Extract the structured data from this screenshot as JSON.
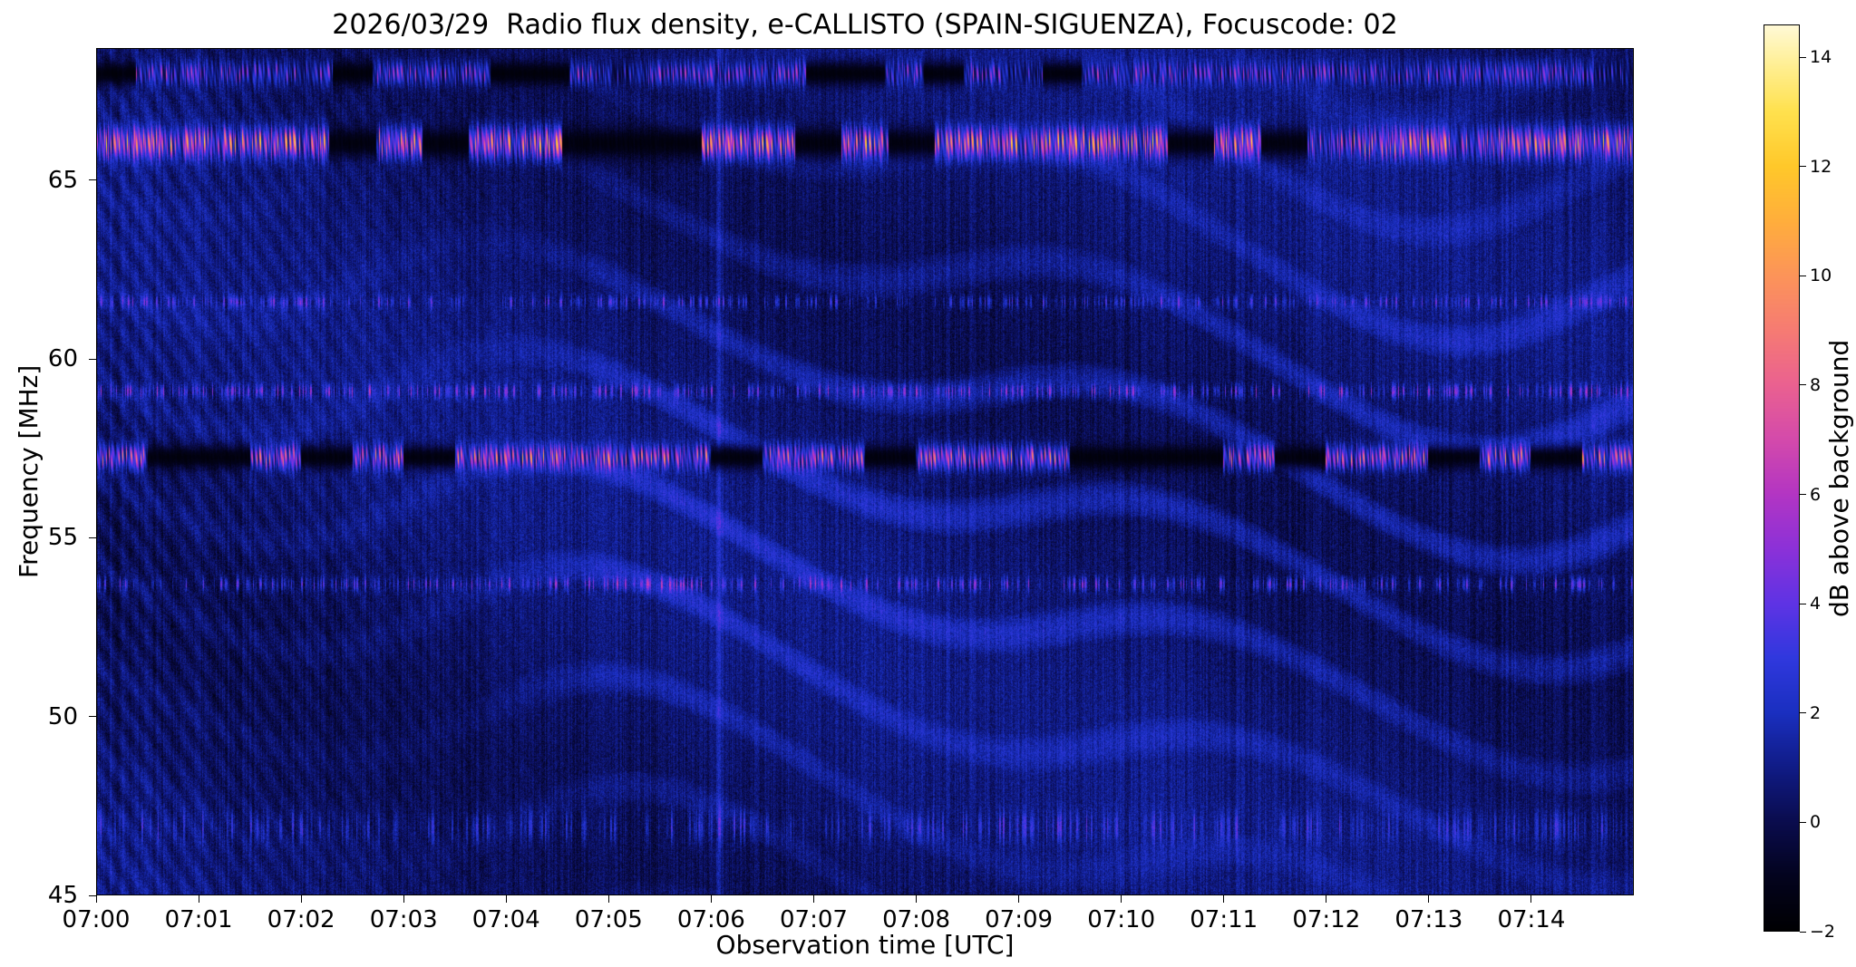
{
  "chart_data": {
    "type": "heatmap",
    "title": "2026/03/29  Radio flux density, e-CALLISTO (SPAIN-SIGUENZA), Focuscode: 02",
    "xlabel": "Observation time [UTC]",
    "ylabel": "Frequency [MHz]",
    "colorbar_label": "dB above background",
    "x_start_utc": "07:00",
    "x_end_utc": "07:15",
    "x_range_minutes": [
      0,
      15
    ],
    "x_ticks": [
      "07:00",
      "07:01",
      "07:02",
      "07:03",
      "07:04",
      "07:05",
      "07:06",
      "07:07",
      "07:08",
      "07:09",
      "07:10",
      "07:11",
      "07:12",
      "07:13",
      "07:14"
    ],
    "y_range": [
      45,
      68.7
    ],
    "y_ticks": [
      45,
      50,
      55,
      60,
      65
    ],
    "value_range": [
      -2,
      14.6
    ],
    "colorbar_ticks": [
      -2,
      0,
      2,
      4,
      6,
      8,
      10,
      12,
      14
    ],
    "grid": false,
    "colormap": [
      {
        "v": -2,
        "c": "#000002"
      },
      {
        "v": -1,
        "c": "#03031e"
      },
      {
        "v": 0,
        "c": "#0a0c4e"
      },
      {
        "v": 1,
        "c": "#101b86"
      },
      {
        "v": 2,
        "c": "#1a2fc0"
      },
      {
        "v": 3,
        "c": "#3038de"
      },
      {
        "v": 4,
        "c": "#5f33e4"
      },
      {
        "v": 5,
        "c": "#8c31d8"
      },
      {
        "v": 6,
        "c": "#b335c3"
      },
      {
        "v": 7,
        "c": "#d44aab"
      },
      {
        "v": 8,
        "c": "#ea6190"
      },
      {
        "v": 9,
        "c": "#f67b73"
      },
      {
        "v": 10,
        "c": "#fc9459"
      },
      {
        "v": 11,
        "c": "#ffae3c"
      },
      {
        "v": 12,
        "c": "#ffc82a"
      },
      {
        "v": 13,
        "c": "#ffe14e"
      },
      {
        "v": 14,
        "c": "#fff1a0"
      },
      {
        "v": 15,
        "c": "#ffffff"
      }
    ],
    "rfi_bands": [
      {
        "freq": 68.0,
        "half_width": 0.33,
        "style": "dashed_rfi",
        "peak_db": 9,
        "gap_fraction": 0.3,
        "seg_rate": 2.6,
        "dash_rate": 25
      },
      {
        "freq": 66.05,
        "half_width": 0.42,
        "style": "dashed_rfi",
        "peak_db": 15,
        "gap_fraction": 0.35,
        "seg_rate": 2.2,
        "dash_rate": 25
      },
      {
        "freq": 61.6,
        "half_width": 0.18,
        "style": "dotted",
        "peak_db": 3.5,
        "gap_fraction": 0,
        "seg_rate": 0,
        "dash_rate": 18
      },
      {
        "freq": 59.1,
        "half_width": 0.2,
        "style": "dotted",
        "peak_db": 5,
        "gap_fraction": 0,
        "seg_rate": 0,
        "dash_rate": 20
      },
      {
        "freq": 57.25,
        "half_width": 0.33,
        "style": "dashed_rfi",
        "peak_db": 13,
        "gap_fraction": 0.45,
        "seg_rate": 2.0,
        "dash_rate": 24
      },
      {
        "freq": 53.7,
        "half_width": 0.2,
        "style": "dotted",
        "peak_db": 4.5,
        "gap_fraction": 0,
        "seg_rate": 0,
        "dash_rate": 19
      },
      {
        "freq": 46.9,
        "half_width": 0.45,
        "style": "dotted",
        "peak_db": 3,
        "gap_fraction": 0,
        "seg_rate": 0,
        "dash_rate": 16
      }
    ],
    "features": {
      "vertical_line_minute": 6.08,
      "vertical_line_db": 1.2,
      "background_db_range": [
        -1,
        2
      ],
      "description": "Dark blue background with faint wavy interference fringes (stronger after 07:04) and horizontal RFI bands of bright dashed emission near 68, 66 and 57 MHz; weaker speckled bands near 61.6, 59, 53.7 and 46.9 MHz; faint bright vertical line near 07:06."
    }
  }
}
